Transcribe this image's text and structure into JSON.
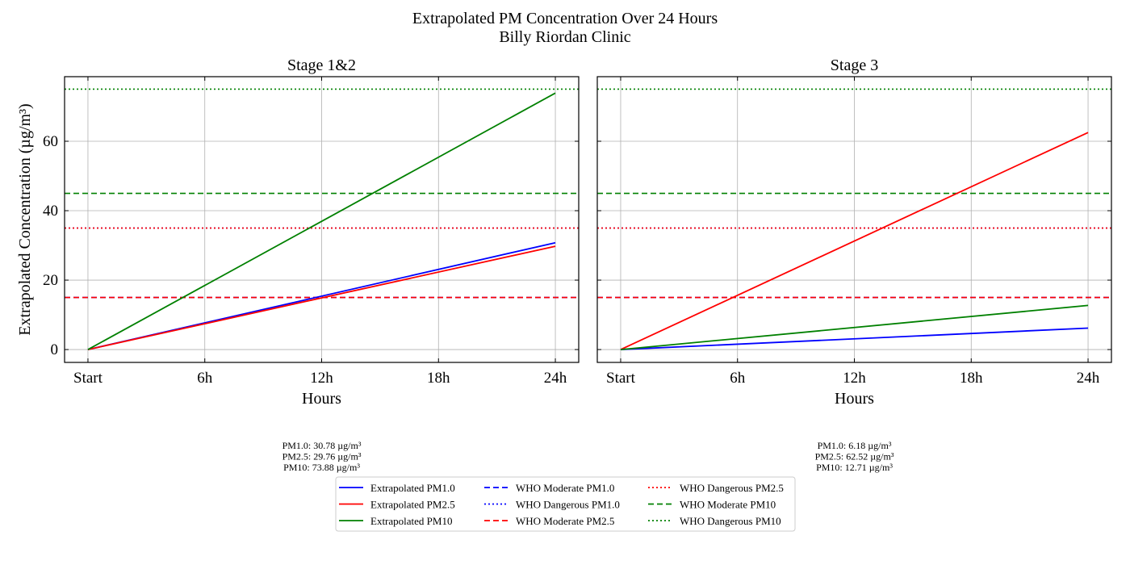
{
  "title": "Extrapolated PM Concentration Over 24 Hours",
  "subtitle": "Billy Riordan Clinic",
  "chart_data": [
    {
      "type": "line",
      "title": "Stage 1&2",
      "xlabel": "Hours",
      "ylabel": "Extrapolated Concentration (µg/m³)",
      "x": [
        0,
        24
      ],
      "xticks": [
        0,
        6,
        12,
        18,
        24
      ],
      "xtick_labels": [
        "Start",
        "6h",
        "12h",
        "18h",
        "24h"
      ],
      "yticks": [
        0,
        20,
        40,
        60
      ],
      "ylim": [
        -3.7,
        78.6
      ],
      "xlim": [
        -1.2,
        25.2
      ],
      "grid": true,
      "series": [
        {
          "name": "Extrapolated PM1.0",
          "values": [
            0,
            30.78
          ],
          "color": "#0000ff",
          "style": "solid"
        },
        {
          "name": "Extrapolated PM2.5",
          "values": [
            0,
            29.76
          ],
          "color": "#ff0000",
          "style": "solid"
        },
        {
          "name": "Extrapolated PM10",
          "values": [
            0,
            73.88
          ],
          "color": "#008000",
          "style": "solid"
        }
      ],
      "annotation": [
        "PM1.0: 30.78 µg/m³",
        "PM2.5: 29.76 µg/m³",
        "PM10: 73.88 µg/m³"
      ]
    },
    {
      "type": "line",
      "title": "Stage 3",
      "xlabel": "Hours",
      "ylabel": "",
      "x": [
        0,
        24
      ],
      "xticks": [
        0,
        6,
        12,
        18,
        24
      ],
      "xtick_labels": [
        "Start",
        "6h",
        "12h",
        "18h",
        "24h"
      ],
      "yticks": [
        0,
        20,
        40,
        60
      ],
      "ylim": [
        -3.7,
        78.6
      ],
      "xlim": [
        -1.2,
        25.2
      ],
      "grid": true,
      "series": [
        {
          "name": "Extrapolated PM1.0",
          "values": [
            0,
            6.18
          ],
          "color": "#0000ff",
          "style": "solid"
        },
        {
          "name": "Extrapolated PM2.5",
          "values": [
            0,
            62.52
          ],
          "color": "#ff0000",
          "style": "solid"
        },
        {
          "name": "Extrapolated PM10",
          "values": [
            0,
            12.71
          ],
          "color": "#008000",
          "style": "solid"
        }
      ],
      "annotation": [
        "PM1.0: 6.18 µg/m³",
        "PM2.5: 62.52 µg/m³",
        "PM10: 12.71 µg/m³"
      ]
    }
  ],
  "thresholds": [
    {
      "name": "WHO Moderate PM1.0",
      "value": 15,
      "color": "#0000ff",
      "style": "dashed"
    },
    {
      "name": "WHO Dangerous PM1.0",
      "value": 35,
      "color": "#0000ff",
      "style": "dotted"
    },
    {
      "name": "WHO Moderate PM2.5",
      "value": 15,
      "color": "#ff0000",
      "style": "dashed"
    },
    {
      "name": "WHO Dangerous PM2.5",
      "value": 35,
      "color": "#ff0000",
      "style": "dotted"
    },
    {
      "name": "WHO Moderate PM10",
      "value": 45,
      "color": "#008000",
      "style": "dashed"
    },
    {
      "name": "WHO Dangerous PM10",
      "value": 75,
      "color": "#008000",
      "style": "dotted"
    }
  ],
  "legend": {
    "placement": "bottom-center",
    "entries": [
      {
        "label": "Extrapolated PM1.0",
        "color": "#0000ff",
        "style": "solid"
      },
      {
        "label": "Extrapolated PM2.5",
        "color": "#ff0000",
        "style": "solid"
      },
      {
        "label": "Extrapolated PM10",
        "color": "#008000",
        "style": "solid"
      },
      {
        "label": "WHO Moderate PM1.0",
        "color": "#0000ff",
        "style": "dashed"
      },
      {
        "label": "WHO Dangerous PM1.0",
        "color": "#0000ff",
        "style": "dotted"
      },
      {
        "label": "WHO Moderate PM2.5",
        "color": "#ff0000",
        "style": "dashed"
      },
      {
        "label": "WHO Dangerous PM2.5",
        "color": "#ff0000",
        "style": "dotted"
      },
      {
        "label": "WHO Moderate PM10",
        "color": "#008000",
        "style": "dashed"
      },
      {
        "label": "WHO Dangerous PM10",
        "color": "#008000",
        "style": "dotted"
      }
    ]
  }
}
